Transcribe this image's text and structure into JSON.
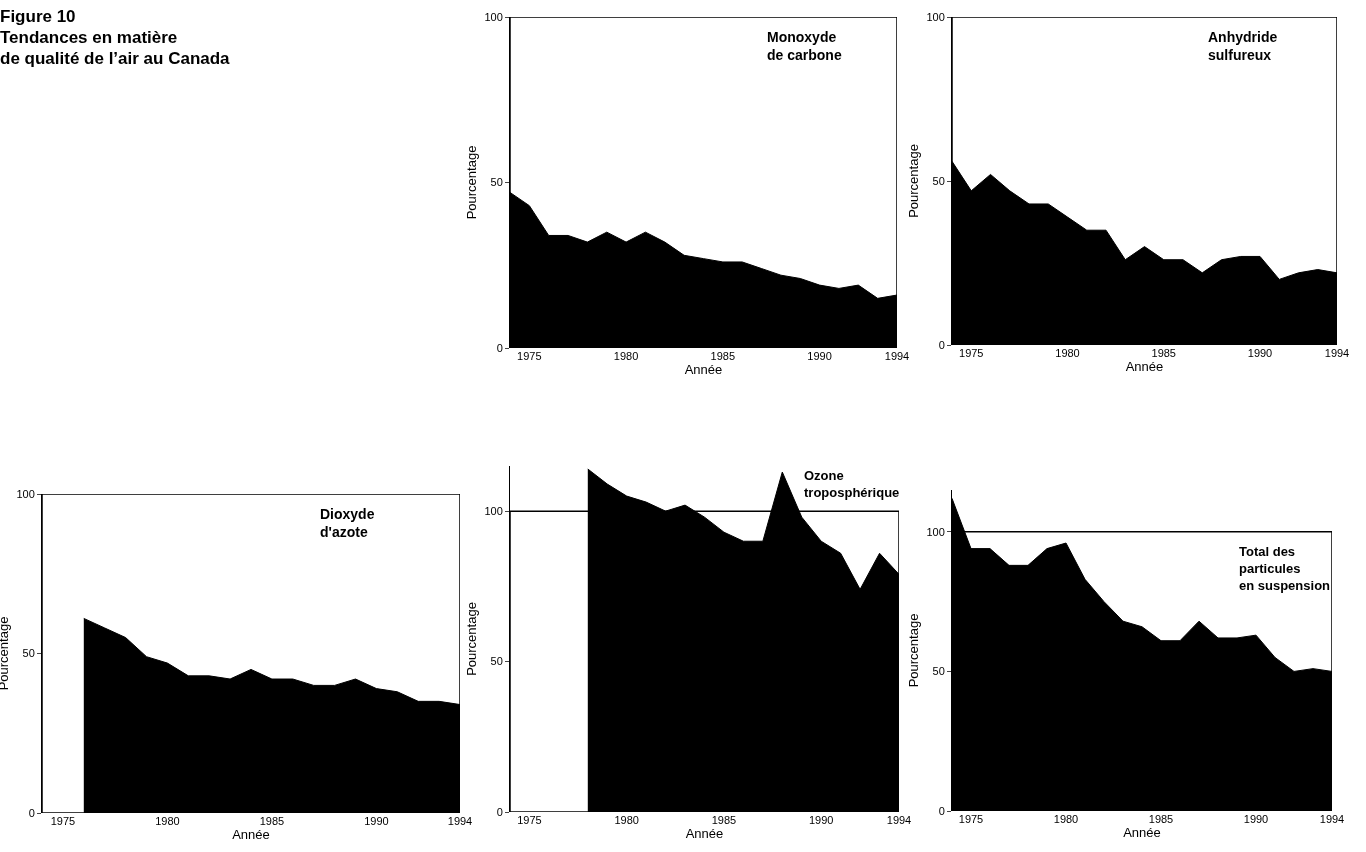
{
  "chart_data": [
    {
      "type": "area",
      "title": "Monoxyde\nde carbone",
      "annotations": [
        "Figure 10\nTendances en matière\nde qualité de l’air au Canada"
      ],
      "xlabel": "Année",
      "ylabel": "Pourcentage",
      "x": [
        1974,
        1975,
        1976,
        1977,
        1978,
        1979,
        1980,
        1981,
        1982,
        1983,
        1984,
        1985,
        1986,
        1987,
        1988,
        1989,
        1990,
        1991,
        1992,
        1993,
        1994
      ],
      "color": "#000000",
      "values": [
        47,
        43,
        34,
        34,
        32,
        35,
        32,
        35,
        32,
        28,
        27,
        26,
        26,
        24,
        22,
        21,
        19,
        18,
        19,
        15,
        16
      ],
      "xlim": [
        1974,
        1994
      ],
      "xticks": [
        1975,
        1980,
        1985,
        1990,
        1994
      ],
      "ylim": [
        0,
        100
      ],
      "yticks": [
        0,
        50,
        100
      ]
    },
    {
      "type": "area",
      "title": "Anhydride\nsulfureux",
      "xlabel": "Année",
      "ylabel": "Pourcentage",
      "x": [
        1974,
        1975,
        1976,
        1977,
        1978,
        1979,
        1980,
        1981,
        1982,
        1983,
        1984,
        1985,
        1986,
        1987,
        1988,
        1989,
        1990,
        1991,
        1992,
        1993,
        1994
      ],
      "color": "#000000",
      "values": [
        56,
        47,
        52,
        47,
        43,
        43,
        39,
        35,
        35,
        26,
        30,
        26,
        26,
        22,
        26,
        27,
        27,
        20,
        22,
        23,
        22
      ],
      "xlim": [
        1974,
        1994
      ],
      "xticks": [
        1975,
        1980,
        1985,
        1990,
        1994
      ],
      "ylim": [
        0,
        100
      ],
      "yticks": [
        0,
        50,
        100
      ]
    },
    {
      "type": "area",
      "title": "Dioxyde\nd'azote",
      "xlabel": "Année",
      "ylabel": "Pourcentage",
      "x": [
        1976,
        1977,
        1978,
        1979,
        1980,
        1981,
        1982,
        1983,
        1984,
        1985,
        1986,
        1987,
        1988,
        1989,
        1990,
        1991,
        1992,
        1993,
        1994
      ],
      "color": "#000000",
      "values": [
        61,
        58,
        55,
        49,
        47,
        43,
        43,
        42,
        45,
        42,
        42,
        40,
        40,
        42,
        39,
        38,
        35,
        35,
        34
      ],
      "xlim": [
        1974,
        1994
      ],
      "xticks": [
        1975,
        1980,
        1985,
        1990,
        1994
      ],
      "ylim": [
        0,
        100
      ],
      "yticks": [
        0,
        50,
        100
      ]
    },
    {
      "type": "area",
      "title": "Ozone\ntroposphérique",
      "xlabel": "Année",
      "ylabel": "Pourcentage",
      "x": [
        1978,
        1979,
        1980,
        1981,
        1982,
        1983,
        1984,
        1985,
        1986,
        1987,
        1988,
        1989,
        1990,
        1991,
        1992,
        1993,
        1994
      ],
      "color": "#000000",
      "values": [
        114,
        109,
        105,
        103,
        100,
        102,
        98,
        93,
        90,
        90,
        113,
        98,
        90,
        86,
        74,
        86,
        79
      ],
      "xlim": [
        1974,
        1994
      ],
      "xticks": [
        1975,
        1980,
        1985,
        1990,
        1994
      ],
      "ylim": [
        0,
        115
      ],
      "yticks": [
        0,
        50,
        100
      ]
    },
    {
      "type": "area",
      "title": "Total des\nparticules\nen suspension",
      "xlabel": "Année",
      "ylabel": "Pourcentage",
      "x": [
        1974,
        1975,
        1976,
        1977,
        1978,
        1979,
        1980,
        1981,
        1982,
        1983,
        1984,
        1985,
        1986,
        1987,
        1988,
        1989,
        1990,
        1991,
        1992,
        1993,
        1994
      ],
      "color": "#000000",
      "values": [
        112,
        94,
        94,
        88,
        88,
        94,
        96,
        83,
        75,
        68,
        66,
        61,
        61,
        68,
        62,
        62,
        63,
        55,
        50,
        51,
        50
      ],
      "xlim": [
        1974,
        1994
      ],
      "xticks": [
        1975,
        1980,
        1985,
        1990,
        1994
      ],
      "ylim": [
        0,
        115
      ],
      "yticks": [
        0,
        50,
        100
      ]
    }
  ]
}
